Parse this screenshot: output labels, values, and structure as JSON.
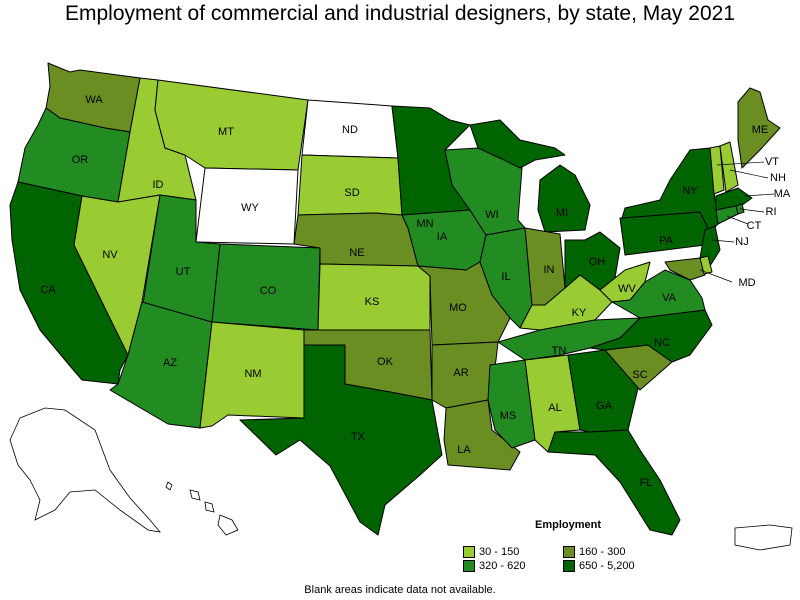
{
  "title": "Employment of commercial and industrial designers, by state, May 2021",
  "legend": {
    "title": "Employment",
    "items": [
      {
        "label": "30 - 150",
        "color": "#99cc33"
      },
      {
        "label": "160 - 300",
        "color": "#6b8e23"
      },
      {
        "label": "320 - 620",
        "color": "#228b22"
      },
      {
        "label": "650 - 5,200",
        "color": "#006400"
      }
    ]
  },
  "footnote": "Blank areas indicate data not available.",
  "states": [
    {
      "abbr": "WA",
      "bin": 1
    },
    {
      "abbr": "OR",
      "bin": 2
    },
    {
      "abbr": "CA",
      "bin": 3
    },
    {
      "abbr": "ID",
      "bin": 0
    },
    {
      "abbr": "NV",
      "bin": 0
    },
    {
      "abbr": "MT",
      "bin": 0
    },
    {
      "abbr": "WY",
      "bin": -1
    },
    {
      "abbr": "UT",
      "bin": 2
    },
    {
      "abbr": "AZ",
      "bin": 2
    },
    {
      "abbr": "CO",
      "bin": 2
    },
    {
      "abbr": "NM",
      "bin": 0
    },
    {
      "abbr": "ND",
      "bin": -1
    },
    {
      "abbr": "SD",
      "bin": 0
    },
    {
      "abbr": "NE",
      "bin": 1
    },
    {
      "abbr": "KS",
      "bin": 0
    },
    {
      "abbr": "OK",
      "bin": 1
    },
    {
      "abbr": "TX",
      "bin": 3
    },
    {
      "abbr": "MN",
      "bin": 3
    },
    {
      "abbr": "IA",
      "bin": 2
    },
    {
      "abbr": "MO",
      "bin": 1
    },
    {
      "abbr": "AR",
      "bin": 1
    },
    {
      "abbr": "LA",
      "bin": 1
    },
    {
      "abbr": "WI",
      "bin": 2
    },
    {
      "abbr": "IL",
      "bin": 2
    },
    {
      "abbr": "MS",
      "bin": 2
    },
    {
      "abbr": "MI",
      "bin": 3
    },
    {
      "abbr": "IN",
      "bin": 1
    },
    {
      "abbr": "KY",
      "bin": 0
    },
    {
      "abbr": "TN",
      "bin": 2
    },
    {
      "abbr": "AL",
      "bin": 0
    },
    {
      "abbr": "OH",
      "bin": 3
    },
    {
      "abbr": "WV",
      "bin": 0
    },
    {
      "abbr": "GA",
      "bin": 3
    },
    {
      "abbr": "FL",
      "bin": 3
    },
    {
      "abbr": "SC",
      "bin": 1
    },
    {
      "abbr": "NC",
      "bin": 3
    },
    {
      "abbr": "VA",
      "bin": 2
    },
    {
      "abbr": "PA",
      "bin": 3
    },
    {
      "abbr": "NY",
      "bin": 3
    },
    {
      "abbr": "ME",
      "bin": 1
    },
    {
      "abbr": "VT",
      "bin": 0
    },
    {
      "abbr": "NH",
      "bin": 0
    },
    {
      "abbr": "MA",
      "bin": 3
    },
    {
      "abbr": "RI",
      "bin": 2
    },
    {
      "abbr": "CT",
      "bin": 2
    },
    {
      "abbr": "NJ",
      "bin": 3
    },
    {
      "abbr": "MD",
      "bin": 1
    },
    {
      "abbr": "DE",
      "bin": 0
    },
    {
      "abbr": "AK",
      "bin": -1
    },
    {
      "abbr": "HI",
      "bin": -1
    },
    {
      "abbr": "PR",
      "bin": -1
    }
  ]
}
